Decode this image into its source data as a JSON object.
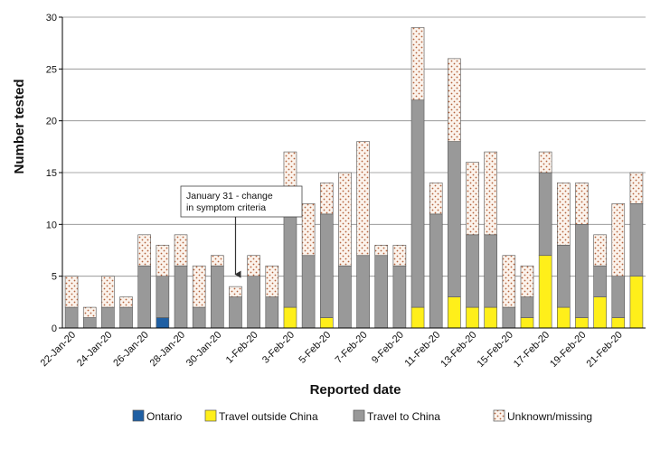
{
  "chart_data": {
    "type": "bar",
    "stacked": true,
    "ylabel": "Number tested",
    "xlabel": "Reported date",
    "ylim": [
      0,
      30
    ],
    "yticks": [
      0,
      5,
      10,
      15,
      20,
      25,
      30
    ],
    "grid": "horizontal",
    "legend_position": "bottom",
    "categories": [
      "22-Jan-20",
      "23-Jan-20",
      "24-Jan-20",
      "25-Jan-20",
      "26-Jan-20",
      "27-Jan-20",
      "28-Jan-20",
      "29-Jan-20",
      "30-Jan-20",
      "31-Jan-20",
      "1-Feb-20",
      "2-Feb-20",
      "3-Feb-20",
      "4-Feb-20",
      "5-Feb-20",
      "6-Feb-20",
      "7-Feb-20",
      "8-Feb-20",
      "9-Feb-20",
      "10-Feb-20",
      "11-Feb-20",
      "12-Feb-20",
      "13-Feb-20",
      "14-Feb-20",
      "15-Feb-20",
      "16-Feb-20",
      "17-Feb-20",
      "18-Feb-20",
      "19-Feb-20",
      "20-Feb-20",
      "21-Feb-20",
      "22-Feb-20"
    ],
    "x_tick_labels": [
      "22-Jan-20",
      "24-Jan-20",
      "26-Jan-20",
      "28-Jan-20",
      "30-Jan-20",
      "1-Feb-20",
      "3-Feb-20",
      "5-Feb-20",
      "7-Feb-20",
      "9-Feb-20",
      "11-Feb-20",
      "13-Feb-20",
      "15-Feb-20",
      "17-Feb-20",
      "19-Feb-20",
      "21-Feb-20"
    ],
    "series": [
      {
        "name": "Ontario",
        "color": "#1f5fa3",
        "pattern": "solid",
        "values": [
          0,
          0,
          0,
          0,
          0,
          1,
          0,
          0,
          0,
          0,
          0,
          0,
          0,
          0,
          0,
          0,
          0,
          0,
          0,
          0,
          0,
          0,
          0,
          0,
          0,
          0,
          0,
          0,
          0,
          0,
          0,
          0
        ]
      },
      {
        "name": "Travel outside China",
        "color": "#ffef1a",
        "pattern": "solid",
        "values": [
          0,
          0,
          0,
          0,
          0,
          0,
          0,
          0,
          0,
          0,
          0,
          0,
          2,
          0,
          1,
          0,
          0,
          0,
          0,
          2,
          0,
          3,
          2,
          2,
          0,
          1,
          7,
          2,
          1,
          3,
          1,
          5
        ]
      },
      {
        "name": "Travel to China",
        "color": "#999999",
        "pattern": "solid",
        "values": [
          2,
          1,
          2,
          2,
          6,
          4,
          6,
          2,
          6,
          3,
          5,
          3,
          10,
          7,
          10,
          6,
          7,
          7,
          6,
          20,
          11,
          15,
          7,
          7,
          2,
          2,
          8,
          6,
          9,
          3,
          4,
          7
        ]
      },
      {
        "name": "Unknown/missing",
        "color": "#e8a88a",
        "pattern": "dots",
        "values": [
          3,
          1,
          3,
          1,
          3,
          3,
          3,
          4,
          1,
          1,
          2,
          3,
          5,
          5,
          3,
          9,
          11,
          1,
          2,
          7,
          3,
          8,
          7,
          8,
          5,
          3,
          2,
          6,
          4,
          3,
          7,
          3
        ]
      }
    ],
    "annotation": {
      "lines": [
        "January 31 - change",
        "in symptom criteria"
      ],
      "category": "31-Jan-20"
    }
  }
}
